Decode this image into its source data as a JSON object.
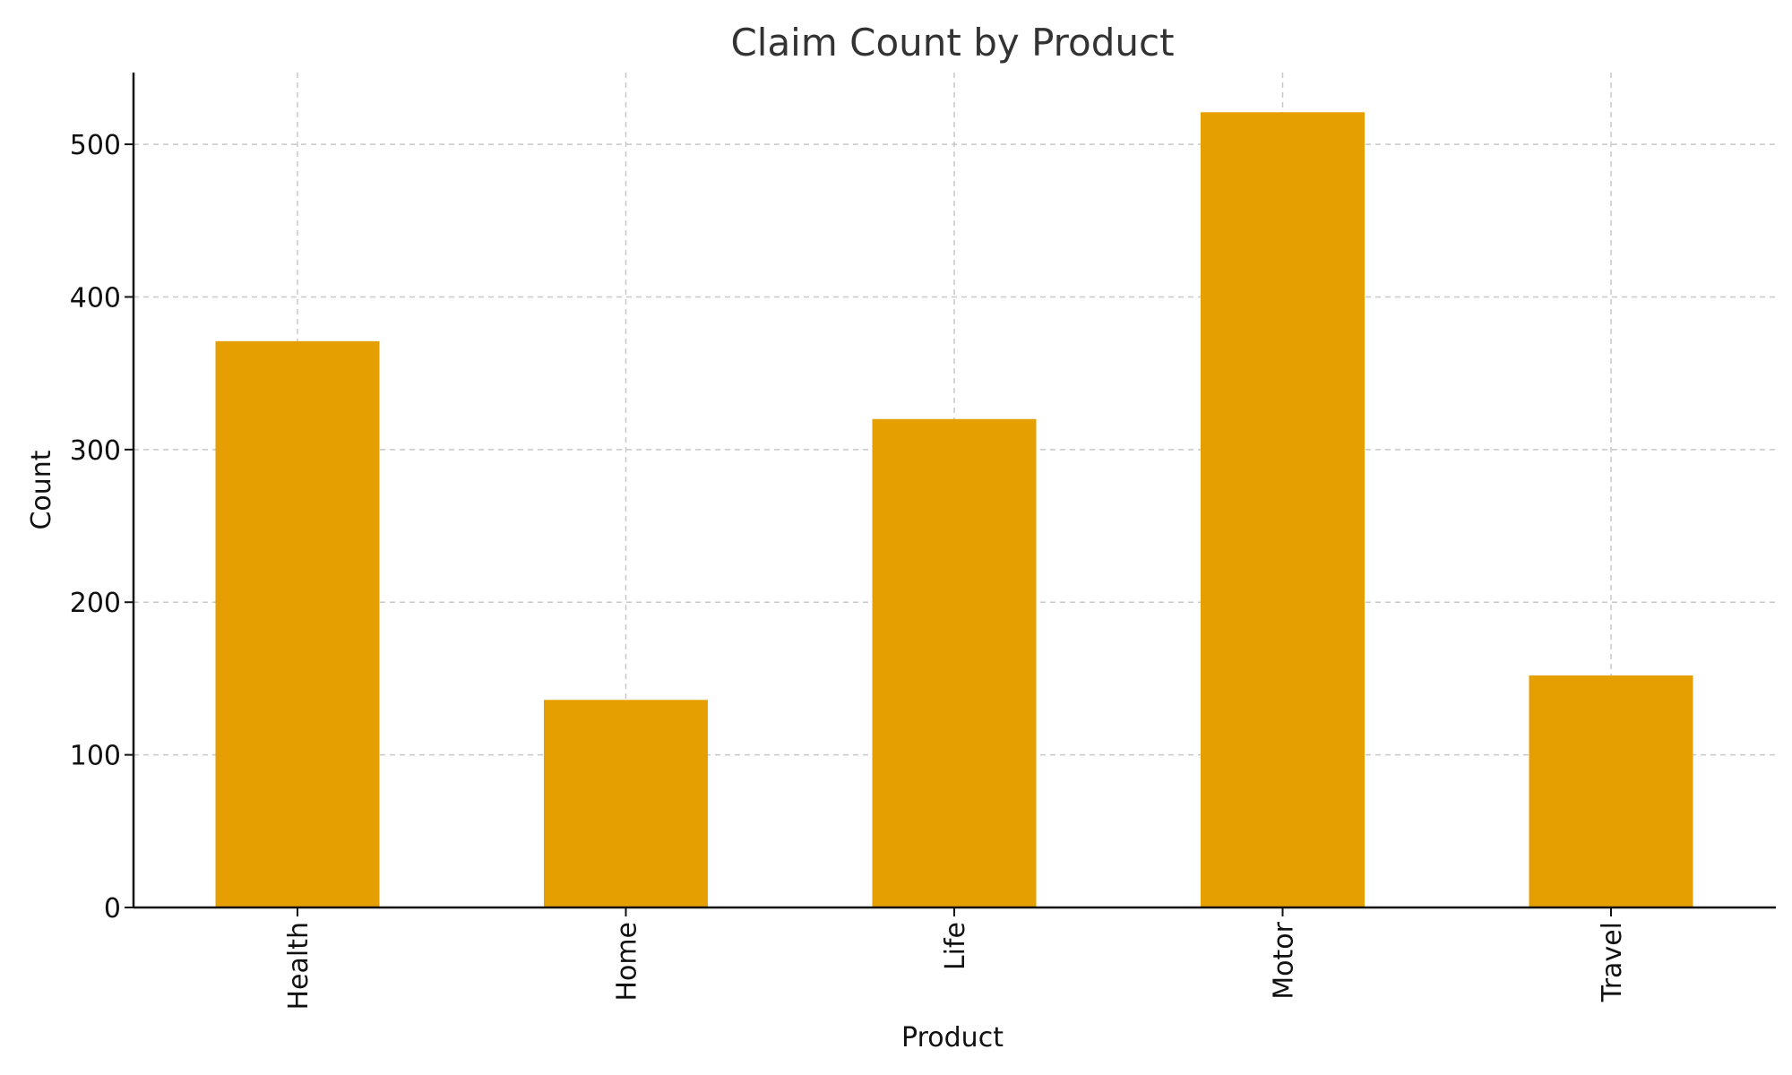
{
  "chart_data": {
    "type": "bar",
    "title": "Claim Count by Product",
    "xlabel": "Product",
    "ylabel": "Count",
    "categories": [
      "Health",
      "Home",
      "Life",
      "Motor",
      "Travel"
    ],
    "values": [
      371,
      136,
      320,
      521,
      152
    ],
    "ylim": [
      0,
      547
    ],
    "yticks": [
      0,
      100,
      200,
      300,
      400,
      500
    ],
    "grid": true,
    "bar_color": "#E69F00"
  }
}
